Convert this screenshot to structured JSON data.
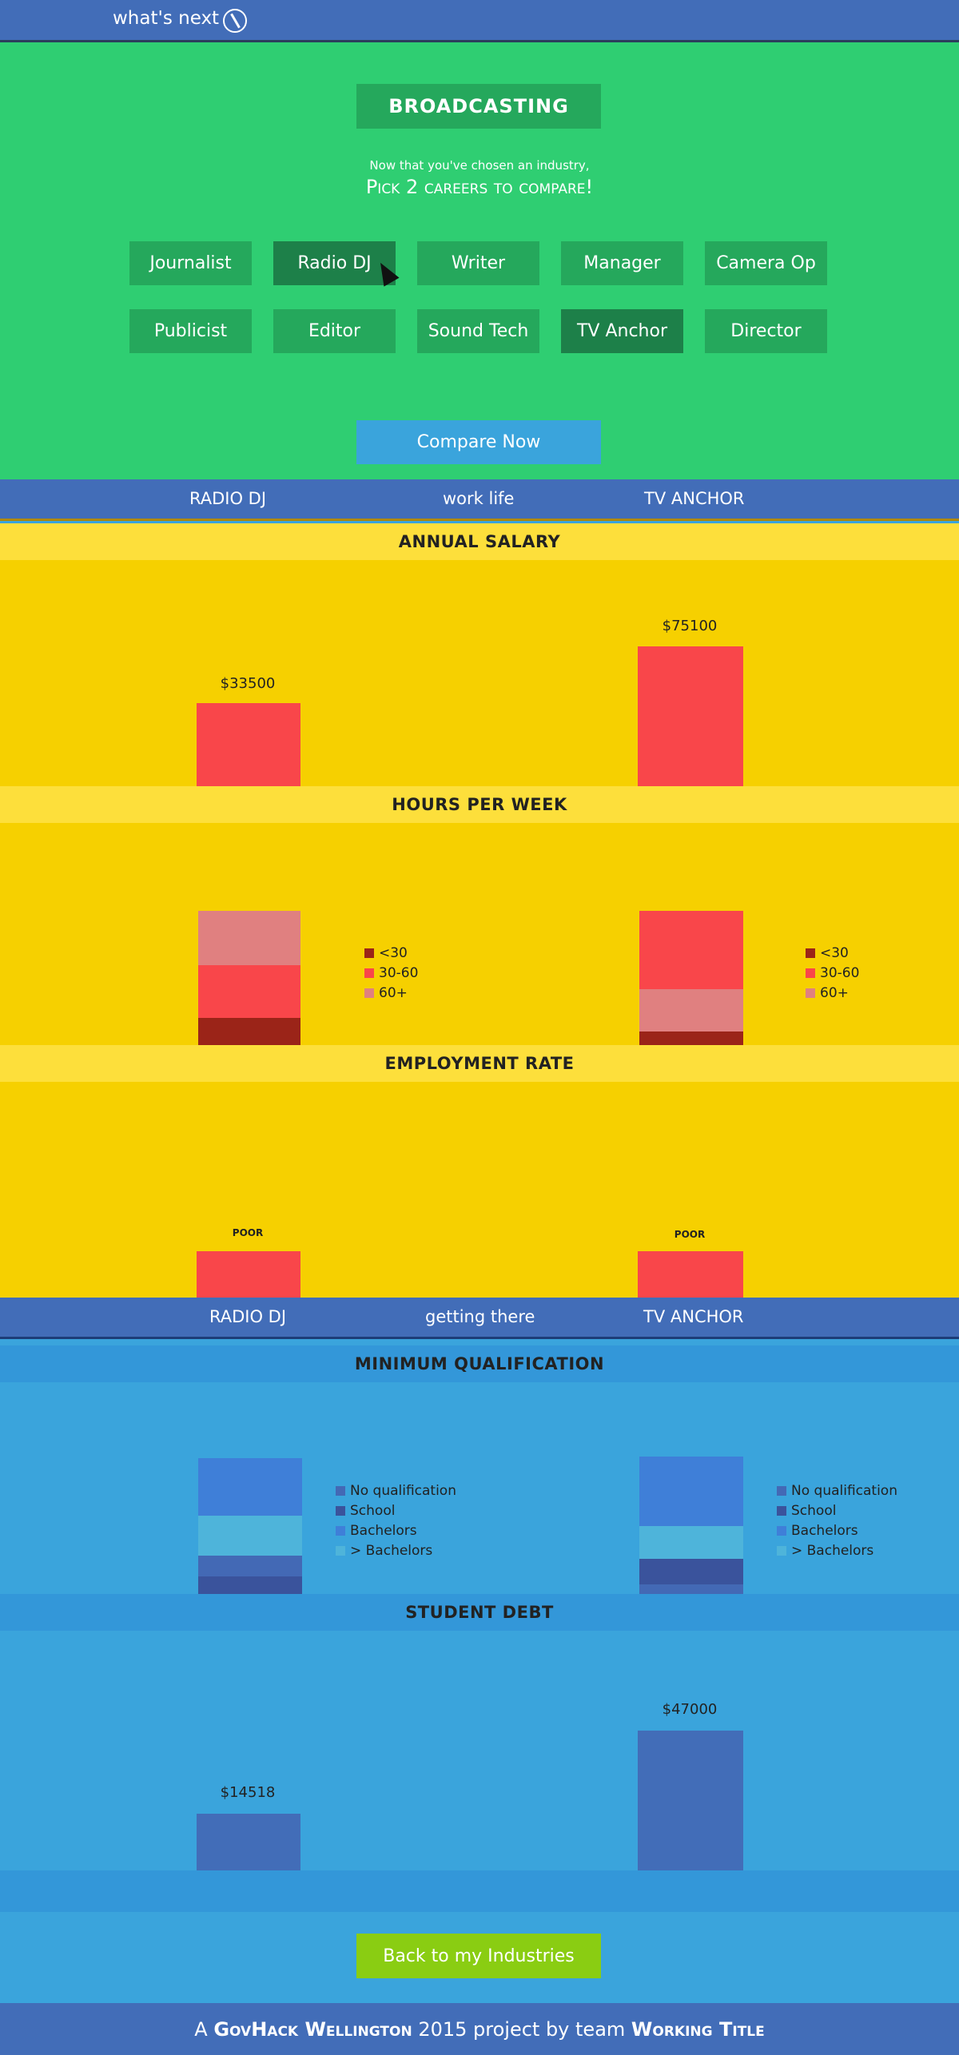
{
  "app": {
    "title": "what's next",
    "icon": "compass-icon"
  },
  "picker": {
    "industry": "BROADCASTING",
    "subtitle_small": "Now that you've chosen an industry,",
    "subtitle_large": "Pick 2 careers to compare!",
    "careers": [
      "Journalist",
      "Radio DJ",
      "Writer",
      "Manager",
      "Camera Op",
      "Publicist",
      "Editor",
      "Sound Tech",
      "TV Anchor",
      "Director"
    ],
    "selected": [
      "Radio DJ",
      "TV Anchor"
    ],
    "compare_label": "Compare Now"
  },
  "worklife": {
    "left": "RADIO DJ",
    "center": "work life",
    "right": "TV ANCHOR",
    "salary": {
      "heading": "ANNUAL SALARY",
      "left_label": "$33500",
      "right_label": "$75100"
    },
    "hours": {
      "heading": "HOURS PER WEEK",
      "legend": [
        "<30",
        "30-60",
        "60+"
      ]
    },
    "employment": {
      "heading": "EMPLOYMENT RATE",
      "left_label": "POOR",
      "right_label": "POOR"
    }
  },
  "gettingthere": {
    "left": "RADIO DJ",
    "center": "getting there",
    "right": "TV ANCHOR",
    "qualification": {
      "heading": "MINIMUM QUALIFICATION",
      "legend": [
        "No qualification",
        "School",
        "Bachelors",
        "> Bachelors"
      ]
    },
    "debt": {
      "heading": "STUDENT DEBT",
      "left_label": "$14518",
      "right_label": "$47000"
    }
  },
  "back_label": "Back to my Industries",
  "footer": {
    "p1": "A ",
    "p2": "GovHack Wellington",
    "p3": " 2015 project by team ",
    "p4": "Working Title"
  },
  "colors": {
    "topbar": "#426db8",
    "green": "#2fce72",
    "career_button": "#25a85c",
    "career_selected": "#1d8049",
    "compare_button": "#3aa4dc",
    "yellow": "#f6d000",
    "yellow_header": "#fddf3b",
    "red": "#f9464a",
    "pink": "#e08080",
    "dark_red": "#9b2418",
    "blue_bg": "#3aa4dc",
    "blue_header": "#3397d9",
    "back_button": "#8acd12"
  },
  "chart_data": [
    {
      "type": "bar",
      "title": "ANNUAL SALARY",
      "categories": [
        "RADIO DJ",
        "TV ANCHOR"
      ],
      "values": [
        33500,
        75100
      ]
    },
    {
      "type": "bar",
      "title": "HOURS PER WEEK",
      "categories": [
        "RADIO DJ",
        "TV ANCHOR"
      ],
      "series": [
        {
          "name": "<30",
          "values": [
            0.2,
            0.1
          ]
        },
        {
          "name": "30-60",
          "values": [
            0.4,
            0.6
          ]
        },
        {
          "name": "60+",
          "values": [
            0.4,
            0.3
          ]
        }
      ]
    },
    {
      "type": "bar",
      "title": "EMPLOYMENT RATE",
      "categories": [
        "RADIO DJ",
        "TV ANCHOR"
      ],
      "values": [
        "POOR",
        "POOR"
      ]
    },
    {
      "type": "bar",
      "title": "MINIMUM QUALIFICATION",
      "categories": [
        "RADIO DJ",
        "TV ANCHOR"
      ],
      "series": [
        {
          "name": "No qualification",
          "values": [
            0.15,
            0.08
          ]
        },
        {
          "name": "School",
          "values": [
            0.12,
            0.18
          ]
        },
        {
          "name": "Bachelors",
          "values": [
            0.4,
            0.5
          ]
        },
        {
          "name": "> Bachelors",
          "values": [
            0.28,
            0.24
          ]
        }
      ]
    },
    {
      "type": "bar",
      "title": "STUDENT DEBT",
      "categories": [
        "RADIO DJ",
        "TV ANCHOR"
      ],
      "values": [
        14518,
        47000
      ]
    }
  ]
}
